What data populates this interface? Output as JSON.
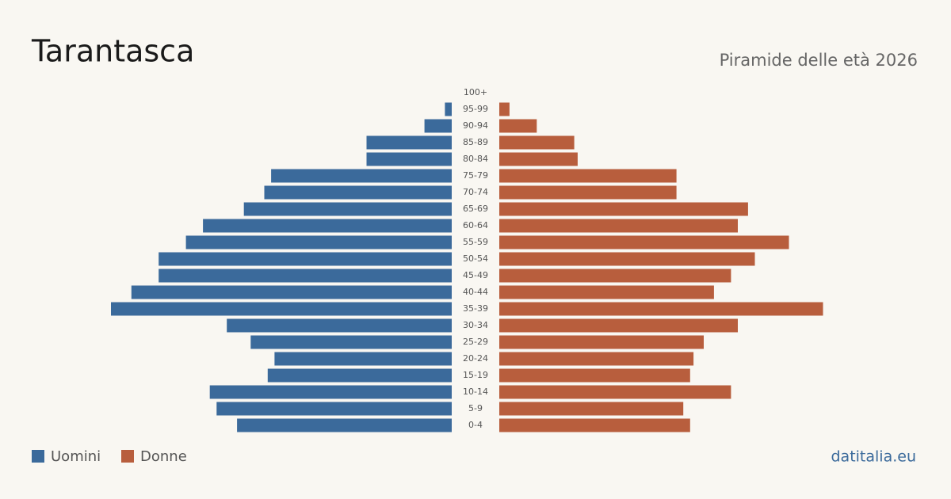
{
  "chart_data": {
    "type": "pyramid",
    "title": "Tarantasca",
    "subtitle": "Piramide delle età 2026",
    "source": "datitalia.eu",
    "categories": [
      "100+",
      "95-99",
      "90-94",
      "85-89",
      "80-84",
      "75-79",
      "70-74",
      "65-69",
      "60-64",
      "55-59",
      "50-54",
      "45-49",
      "40-44",
      "35-39",
      "30-34",
      "25-29",
      "20-24",
      "15-19",
      "10-14",
      "5-9",
      "0-4"
    ],
    "series": [
      {
        "name": "Uomini",
        "color": "#3b6a9b",
        "values": [
          0,
          2,
          8,
          25,
          25,
          53,
          55,
          61,
          73,
          78,
          86,
          86,
          94,
          100,
          66,
          59,
          52,
          54,
          71,
          69,
          63
        ]
      },
      {
        "name": "Donne",
        "color": "#b85e3d",
        "values": [
          0,
          3,
          11,
          22,
          23,
          52,
          52,
          73,
          70,
          85,
          75,
          68,
          63,
          95,
          70,
          60,
          57,
          56,
          68,
          54,
          56
        ]
      }
    ],
    "xlim": [
      0,
      100
    ]
  }
}
